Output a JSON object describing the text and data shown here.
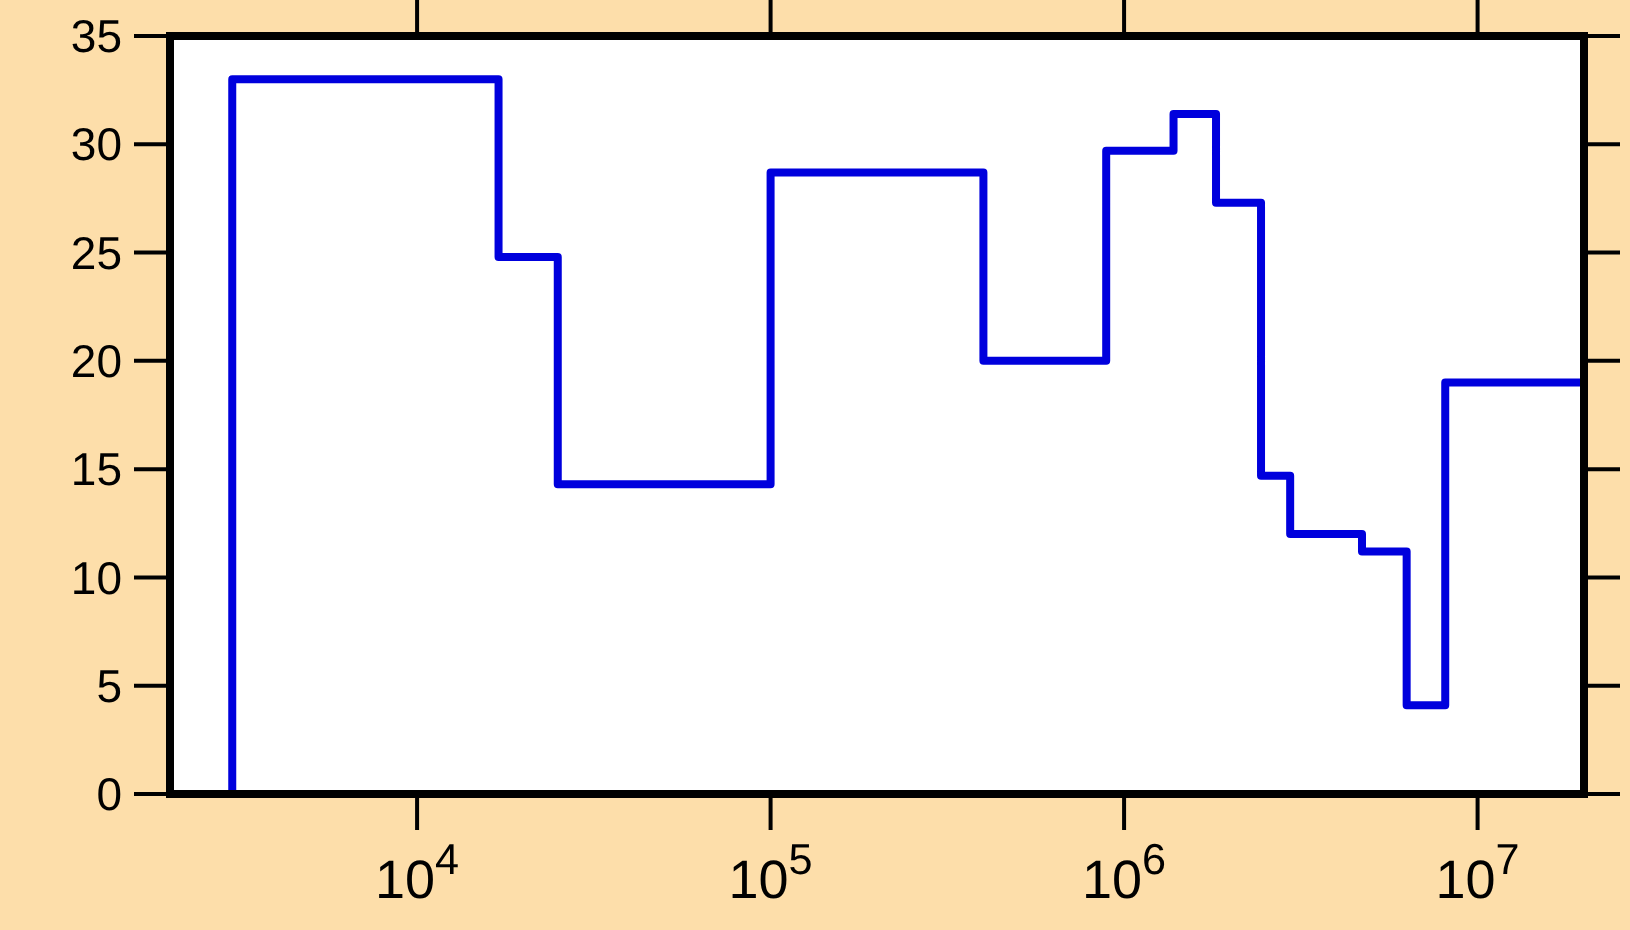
{
  "chart_data": {
    "type": "step",
    "log": "x",
    "xlim": [
      2000,
      20000000
    ],
    "ylim": [
      0,
      35
    ],
    "xticks": [
      {
        "value": 10000,
        "label": "10$^{4}$"
      },
      {
        "value": 100000,
        "label": "10$^{5}$"
      },
      {
        "value": 1000000,
        "label": "10$^{6}$"
      },
      {
        "value": 10000000,
        "label": "10$^{7}$"
      }
    ],
    "yticks": [
      0,
      5,
      10,
      15,
      20,
      25,
      30,
      35
    ],
    "grid": false,
    "line_style": "solid",
    "series": [
      {
        "color": "#0000dd",
        "x": [
          3000,
          3000,
          17000,
          25000,
          100000,
          400000,
          890000,
          1380000,
          1820000,
          2440000,
          2950000,
          4710000,
          6300000,
          8100000,
          20000000
        ],
        "values": [
          0,
          33,
          24.8,
          14.3,
          28.7,
          20,
          29.7,
          31.4,
          27.3,
          14.7,
          12,
          11.2,
          4.1,
          19,
          0
        ]
      }
    ]
  }
}
